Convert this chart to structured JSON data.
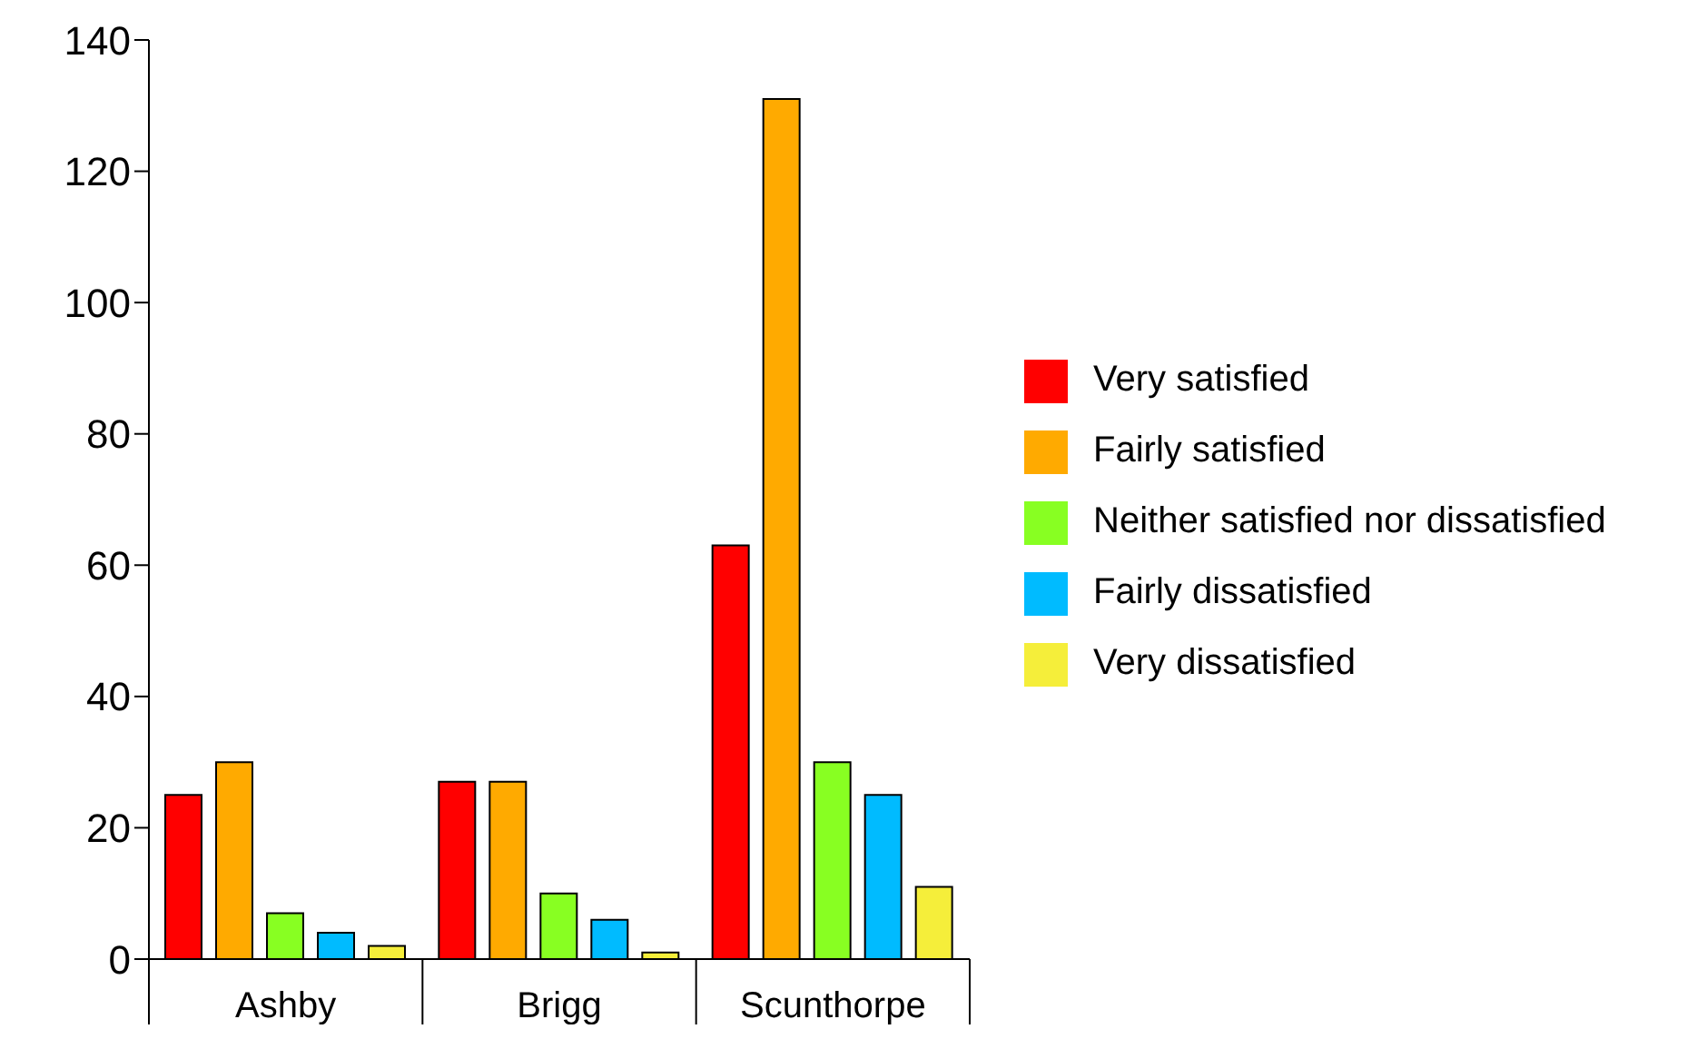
{
  "chart_data": {
    "type": "bar",
    "categories": [
      "Ashby",
      "Brigg",
      "Scunthorpe"
    ],
    "series": [
      {
        "name": "Very satisfied",
        "color": "#ff0000",
        "values": [
          25,
          27,
          63
        ]
      },
      {
        "name": "Fairly satisfied",
        "color": "#ffaa00",
        "values": [
          30,
          27,
          131
        ]
      },
      {
        "name": "Neither satisfied nor dissatisfied",
        "color": "#88ff22",
        "values": [
          7,
          10,
          30
        ]
      },
      {
        "name": "Fairly dissatisfied",
        "color": "#00bbff",
        "values": [
          4,
          6,
          25
        ]
      },
      {
        "name": "Very dissatisfied",
        "color": "#f5ee3a",
        "values": [
          2,
          1,
          11
        ]
      }
    ],
    "ylim": [
      0,
      140
    ],
    "yticks": [
      0,
      20,
      40,
      60,
      80,
      100,
      120,
      140
    ],
    "grid": false,
    "legend": "right"
  }
}
